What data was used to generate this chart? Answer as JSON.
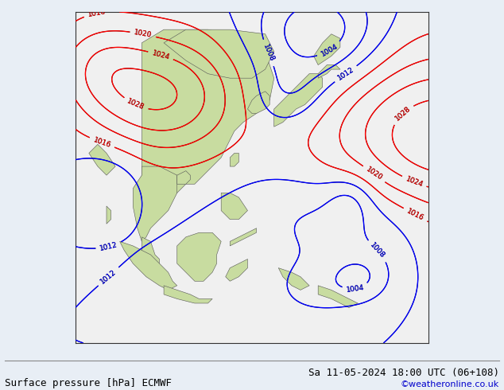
{
  "title_left": "Surface pressure [hPa] ECMWF",
  "title_right": "Sa 11-05-2024 18:00 UTC (06+108)",
  "credit": "©weatheronline.co.uk",
  "credit_color": "#0000cc",
  "ocean_color": "#f0f0f0",
  "land_color": "#c8dca0",
  "border_color": "#555555",
  "title_fontsize": 9,
  "figsize": [
    6.34,
    4.9
  ],
  "dpi": 100,
  "xlim": [
    85,
    165
  ],
  "ylim": [
    -18,
    57
  ]
}
